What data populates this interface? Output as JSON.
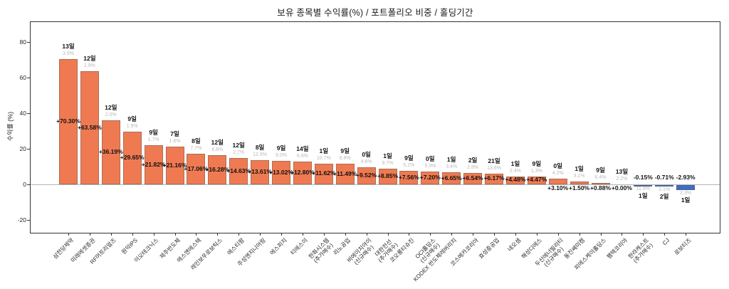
{
  "chart_data": {
    "type": "bar",
    "title": "보유 종목별 수익률(%) / 포트폴리오 비중 / 홀딩기간",
    "xlabel": "",
    "ylabel": "수익률 (%)",
    "ylim": [
      -27.5,
      91.5
    ],
    "yticks": [
      80,
      60,
      40,
      20,
      0,
      -20
    ],
    "grid": false,
    "legend_position": "none",
    "colors": {
      "positive": "#ef7a52",
      "negative": "#3e6cc8",
      "weight_label": "#b9b9b9",
      "zero_line": "#b4b4b4"
    },
    "bars": [
      {
        "name": "삼천당제약",
        "days": "13일",
        "weight": "3.9%",
        "return": "+70.30%",
        "value": 70.3
      },
      {
        "name": "미래에셋증권",
        "days": "12일",
        "weight": "1.9%",
        "return": "+63.58%",
        "value": 63.58
      },
      {
        "name": "RF머트리얼즈",
        "days": "12일",
        "weight": "2.0%",
        "return": "+36.19%",
        "value": 36.19
      },
      {
        "name": "원익IPS",
        "days": "9일",
        "weight": "1.9%",
        "return": "+29.65%",
        "value": 29.65
      },
      {
        "name": "이오테크닉스",
        "days": "9일",
        "weight": "1.7%",
        "return": "+21.82%",
        "value": 21.82
      },
      {
        "name": "제주반도체",
        "days": "7일",
        "weight": "1.6%",
        "return": "+21.16%",
        "value": 21.16
      },
      {
        "name": "에스앤에스텍",
        "days": "8일",
        "weight": "7.7%",
        "return": "+17.06%",
        "value": 17.06
      },
      {
        "name": "레인보우로보틱스",
        "days": "12일",
        "weight": "8.8%",
        "return": "+16.28%",
        "value": 16.28
      },
      {
        "name": "에스티팜",
        "days": "12일",
        "weight": "2.7%",
        "return": "+14.63%",
        "value": 14.63
      },
      {
        "name": "주성엔지니어링",
        "days": "8일",
        "weight": "12.5%",
        "return": "+13.61%",
        "value": 13.61
      },
      {
        "name": "에스피지",
        "days": "9일",
        "weight": "9.0%",
        "return": "+13.02%",
        "value": 13.02
      },
      {
        "name": "티에스이",
        "days": "14일",
        "weight": "6.9%",
        "return": "+12.80%",
        "value": 12.8
      },
      {
        "name": "한화시스템\n(추가매수)",
        "days": "1일",
        "weight": "10.7%",
        "return": "+11.62%",
        "value": 11.62
      },
      {
        "name": "리노공업",
        "days": "9일",
        "weight": "6.8%",
        "return": "+11.49%",
        "value": 11.49
      },
      {
        "name": "비에이치아이\n(신규매수)",
        "days": "0일",
        "weight": "4.6%",
        "return": "+9.52%",
        "value": 9.52
      },
      {
        "name": "대한전선\n(추가매수)",
        "days": "1일",
        "weight": "9.7%",
        "return": "+8.85%",
        "value": 8.85
      },
      {
        "name": "코오롱티슈진",
        "days": "9일",
        "weight": "5.2%",
        "return": "+7.56%",
        "value": 7.56
      },
      {
        "name": "OCI홀딩스\n(신규매수)",
        "days": "0일",
        "weight": "5.3%",
        "return": "+7.20%",
        "value": 7.2
      },
      {
        "name": "KODEX 반도체레버리지",
        "days": "1일",
        "weight": "3.4%",
        "return": "+6.65%",
        "value": 6.65
      },
      {
        "name": "코스메카코리아",
        "days": "2일",
        "weight": "2.8%",
        "return": "+6.54%",
        "value": 6.54
      },
      {
        "name": "효성중공업",
        "days": "21일",
        "weight": "13.8%",
        "return": "+6.17%",
        "value": 6.17
      },
      {
        "name": "네오셈",
        "days": "1일",
        "weight": "2.4%",
        "return": "+4.48%",
        "value": 4.48
      },
      {
        "name": "해성디에스",
        "days": "9일",
        "weight": "1.3%",
        "return": "+4.47%",
        "value": 4.47
      },
      {
        "name": "두산에너빌리티\n(신규매수)",
        "days": "0일",
        "weight": "4.2%",
        "return": "+3.10%",
        "value": 3.1
      },
      {
        "name": "동진쎄미켐",
        "days": "1일",
        "weight": "3.1%",
        "return": "+1.50%",
        "value": 1.5
      },
      {
        "name": "피에스케이홀딩스",
        "days": "9일",
        "weight": "6.4%",
        "return": "+0.88%",
        "value": 0.88
      },
      {
        "name": "팸텍코리아",
        "days": "13일",
        "weight": "2.2%",
        "return": "+0.00%",
        "value": 0.0
      },
      {
        "name": "한라캐스트\n(추가매수)",
        "days": "1일",
        "weight": "11.9%",
        "return": "-0.15%",
        "value": -0.15
      },
      {
        "name": "CJ",
        "days": "2일",
        "weight": "2.1%",
        "return": "-0.71%",
        "value": -0.71
      },
      {
        "name": "로보티즈",
        "days": "1일",
        "weight": "2.3%",
        "return": "-2.93%",
        "value": -2.93
      }
    ]
  }
}
